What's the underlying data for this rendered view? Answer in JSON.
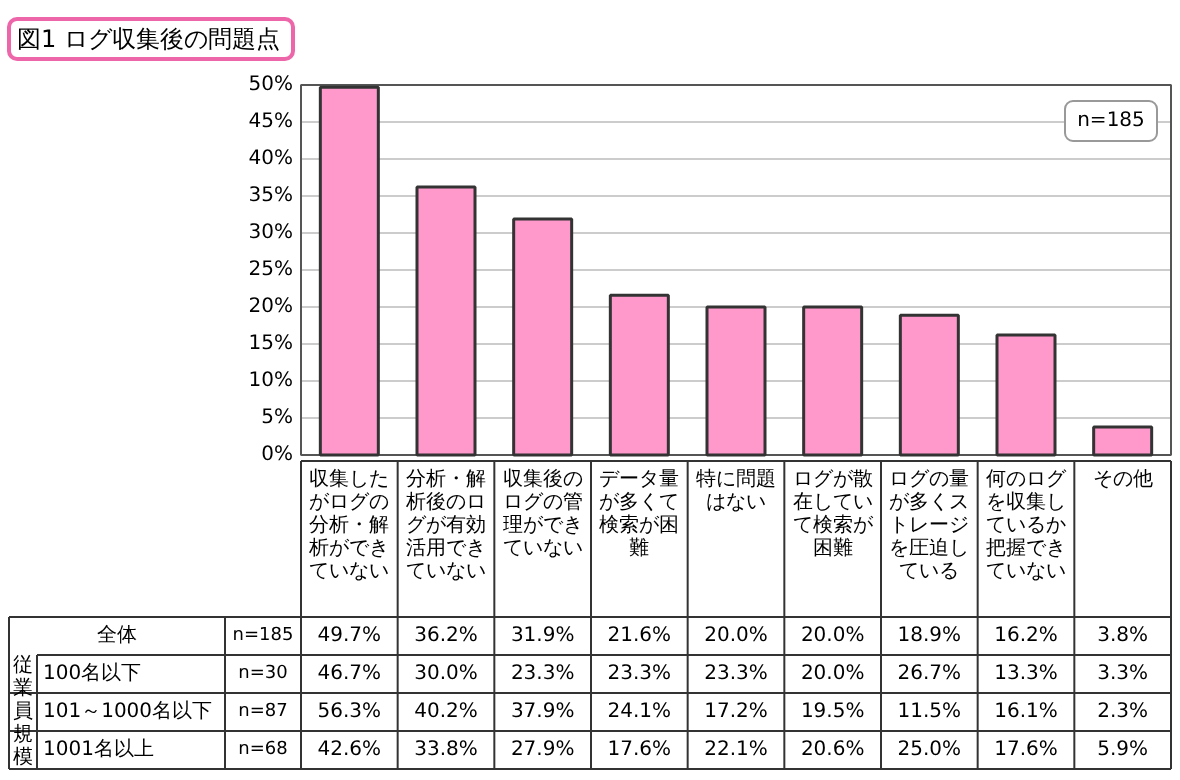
{
  "chart_data": {
    "type": "bar",
    "title": "図1 ログ収集後の問題点",
    "categories": [
      "収集したがログの分析・解析ができていない",
      "分析・解析後のログが有効活用できていない",
      "収集後のログの管理ができていない",
      "データ量が多くて検索が困難",
      "特に問題はない",
      "ログが散在していて検索が困難",
      "ログの量が多くストレージを圧迫している",
      "何のログを収集しているか把握できていない",
      "その他"
    ],
    "series": [
      {
        "name": "全体",
        "color": "#ff99cc",
        "values": [
          49.7,
          36.2,
          31.9,
          21.6,
          20.0,
          20.0,
          18.9,
          16.2,
          3.8
        ],
        "value_labels": [
          "49.7%",
          "36.2%",
          "31.9%",
          "21.6%",
          "20.0%",
          "20.0%",
          "18.9%",
          "16.2%",
          "3.8%"
        ]
      }
    ],
    "ylim": [
      0,
      50
    ],
    "yticks": [
      {
        "value": 0,
        "label": "0%"
      },
      {
        "value": 5,
        "label": "5%"
      },
      {
        "value": 10,
        "label": "10%"
      },
      {
        "value": 15,
        "label": "15%"
      },
      {
        "value": 20,
        "label": "20%"
      },
      {
        "value": 25,
        "label": "25%"
      },
      {
        "value": 30,
        "label": "30%"
      },
      {
        "value": 35,
        "label": "35%"
      },
      {
        "value": 40,
        "label": "40%"
      },
      {
        "value": 45,
        "label": "45%"
      },
      {
        "value": 50,
        "label": "50%"
      }
    ],
    "grid": "y",
    "legend": false,
    "annotations": [
      "n=185",
      "n=185",
      "従業員規模",
      "100名以下",
      "n=30",
      "46.7%",
      "30.0%",
      "23.3%",
      "23.3%",
      "23.3%",
      "20.0%",
      "26.7%",
      "13.3%",
      "3.3%",
      "101～1000名以下",
      "n=87",
      "56.3%",
      "40.2%",
      "37.9%",
      "24.1%",
      "17.2%",
      "19.5%",
      "11.5%",
      "16.1%",
      "2.3%",
      "1001名以上",
      "n=68",
      "42.6%",
      "33.8%",
      "27.9%",
      "17.6%",
      "22.1%",
      "20.6%",
      "25.0%",
      "17.6%",
      "5.9%"
    ]
  }
}
